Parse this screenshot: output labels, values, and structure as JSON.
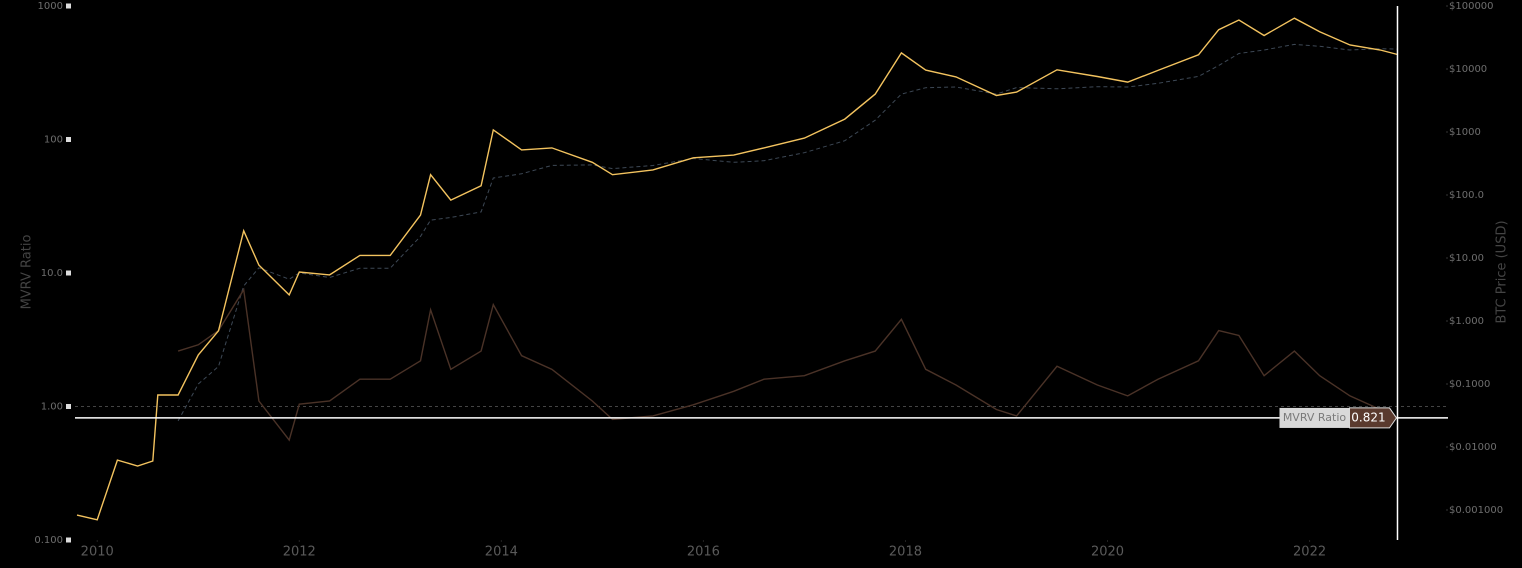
{
  "chart_data": {
    "type": "line",
    "y_label": "MVRV Ratio",
    "y2_label": "BTC Price (USD)",
    "log_scale": true,
    "x": [
      2009.8,
      2010.0,
      2010.2,
      2010.4,
      2010.55,
      2010.6,
      2010.8,
      2011.0,
      2011.2,
      2011.45,
      2011.6,
      2011.9,
      2012.0,
      2012.3,
      2012.6,
      2012.9,
      2013.2,
      2013.3,
      2013.5,
      2013.8,
      2013.92,
      2014.2,
      2014.5,
      2014.9,
      2015.1,
      2015.5,
      2015.9,
      2016.3,
      2016.6,
      2017.0,
      2017.4,
      2017.7,
      2017.96,
      2018.2,
      2018.5,
      2018.9,
      2019.1,
      2019.5,
      2019.9,
      2020.2,
      2020.5,
      2020.9,
      2021.1,
      2021.3,
      2021.55,
      2021.85,
      2022.1,
      2022.4,
      2022.7,
      2022.87
    ],
    "series": [
      {
        "name": "MVRV Ratio",
        "color": "#4a3227",
        "axis": "y",
        "values": [
          null,
          null,
          null,
          null,
          null,
          null,
          2.6,
          2.9,
          3.7,
          7.5,
          1.1,
          0.56,
          1.04,
          1.1,
          1.6,
          1.6,
          2.2,
          5.3,
          1.9,
          2.6,
          5.8,
          2.4,
          1.9,
          1.1,
          0.8,
          0.85,
          1.03,
          1.3,
          1.6,
          1.7,
          2.2,
          2.6,
          4.5,
          1.9,
          1.45,
          0.95,
          0.85,
          2.0,
          1.45,
          1.2,
          1.6,
          2.2,
          3.7,
          3.4,
          1.7,
          2.6,
          1.7,
          1.2,
          0.95,
          0.821
        ]
      },
      {
        "color": "#f3c35f",
        "axis": "y2",
        "values": [
          0.00083,
          0.0007,
          0.0062,
          0.005,
          0.006,
          0.067,
          0.067,
          0.29,
          0.7,
          27,
          7.7,
          2.6,
          6,
          5.4,
          11,
          11,
          48,
          210,
          83,
          140,
          1080,
          520,
          560,
          330,
          210,
          250,
          390,
          430,
          560,
          800,
          1600,
          4000,
          18000,
          9600,
          7500,
          3800,
          4300,
          9700,
          7600,
          6200,
          9500,
          16800,
          42000,
          60000,
          34000,
          64000,
          39000,
          24000,
          20000,
          17000
        ]
      },
      {
        "color": "#3d4855",
        "axis": "y2",
        "dashed": true,
        "values": [
          null,
          null,
          null,
          null,
          null,
          null,
          0.026,
          0.1,
          0.19,
          3.6,
          7,
          4.6,
          5.8,
          4.9,
          6.9,
          6.9,
          22,
          40,
          44,
          54,
          186,
          217,
          295,
          300,
          262,
          294,
          379,
          330,
          350,
          470,
          727,
          1540,
          4000,
          5050,
          5170,
          4000,
          5060,
          4850,
          5240,
          5170,
          5940,
          7640,
          11350,
          17650,
          20000,
          24600,
          22900,
          20000,
          21000,
          20700
        ]
      }
    ],
    "reference_line": 1,
    "xlim": [
      2009.78,
      2023.37
    ],
    "xticks": [
      2010,
      2012,
      2014,
      2016,
      2018,
      2020,
      2022
    ],
    "ylim": [
      0.1,
      1000
    ],
    "yticks": [
      {
        "value": 0.1,
        "label": "0.100"
      },
      {
        "value": 1,
        "label": "1.00"
      },
      {
        "value": 10,
        "label": "10.0"
      },
      100,
      1000
    ],
    "y2lim": [
      0.000334,
      100000
    ],
    "y2ticks": [
      {
        "value": 0.001,
        "label": "$0.001000"
      },
      {
        "value": 0.01,
        "label": "$0.01000"
      },
      {
        "value": 0.1,
        "label": "$0.1000"
      },
      {
        "value": 1,
        "label": "$1.000"
      },
      {
        "value": 10,
        "label": "$10.00"
      },
      {
        "value": 100,
        "label": "$100.0"
      },
      {
        "value": 1000,
        "label": "$1000"
      },
      {
        "value": 10000,
        "label": "$10000"
      },
      {
        "value": 100000,
        "label": "$100000"
      }
    ]
  }
}
